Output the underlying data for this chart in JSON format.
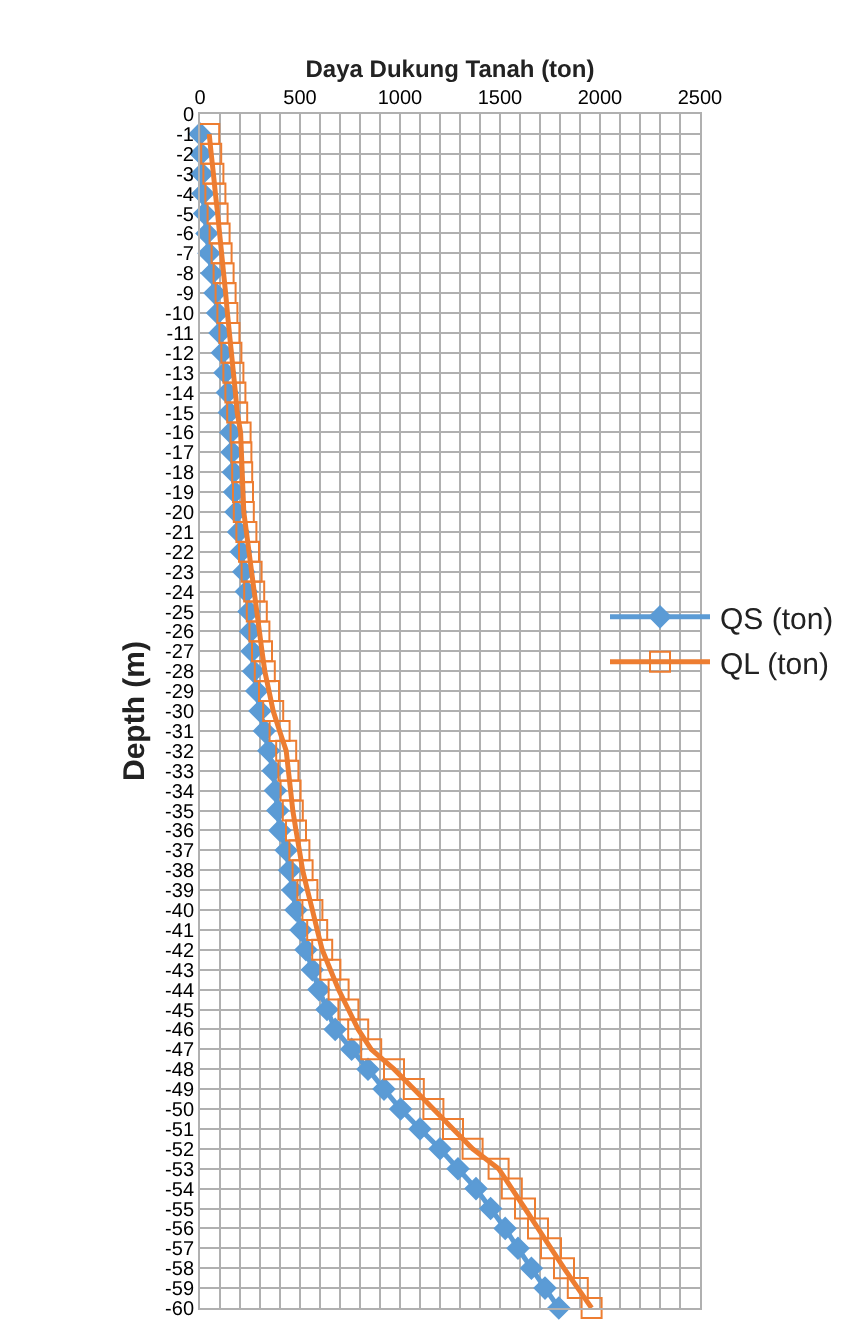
{
  "chart_data": {
    "type": "line",
    "xlabel": "Daya Dukung Tanah (ton)",
    "ylabel": "Depth (m)",
    "series": [
      {
        "name": "QS (ton)",
        "color": "#5b9bd5",
        "marker": "diamond",
        "x": [
          0,
          5,
          10,
          15,
          23,
          35,
          45,
          60,
          75,
          88,
          100,
          112,
          125,
          137,
          147,
          154,
          160,
          167,
          173,
          180,
          193,
          206,
          219,
          232,
          245,
          253,
          260,
          268,
          284,
          300,
          322,
          344,
          366,
          377,
          389,
          400,
          431,
          448,
          464,
          480,
          505,
          530,
          562,
          595,
          635,
          676,
          758,
          840,
          920,
          1003,
          1100,
          1200,
          1290,
          1380,
          1453,
          1526,
          1590,
          1657,
          1725,
          1794
        ],
        "values": [
          -1,
          -2,
          -3,
          -4,
          -5,
          -6,
          -7,
          -8,
          -9,
          -10,
          -11,
          -12,
          -13,
          -14,
          -15,
          -16,
          -17,
          -18,
          -19,
          -20,
          -21,
          -22,
          -23,
          -24,
          -25,
          -26,
          -27,
          -28,
          -29,
          -30,
          -31,
          -32,
          -33,
          -34,
          -35,
          -36,
          -37,
          -38,
          -39,
          -40,
          -41,
          -42,
          -43,
          -44,
          -45,
          -46,
          -47,
          -48,
          -49,
          -50,
          -51,
          -52,
          -53,
          -54,
          -55,
          -56,
          -57,
          -58,
          -59,
          -60
        ]
      },
      {
        "name": "QL (ton)",
        "color": "#ed7d31",
        "marker": "square",
        "x": [
          46,
          56,
          67,
          77,
          88,
          98,
          108,
          118,
          128,
          137,
          147,
          157,
          167,
          177,
          186,
          203,
          207,
          211,
          215,
          219,
          232,
          245,
          258,
          271,
          284,
          297,
          310,
          324,
          345,
          366,
          398,
          431,
          442,
          453,
          464,
          480,
          497,
          513,
          537,
          562,
          586,
          611,
          652,
          693,
          742,
          791,
          856,
          970,
          1069,
          1167,
          1265,
          1363,
          1493,
          1559,
          1625,
          1690,
          1755,
          1820,
          1889,
          1958
        ],
        "values": [
          -1,
          -2,
          -3,
          -4,
          -5,
          -6,
          -7,
          -8,
          -9,
          -10,
          -11,
          -12,
          -13,
          -14,
          -15,
          -16,
          -17,
          -18,
          -19,
          -20,
          -21,
          -22,
          -23,
          -24,
          -25,
          -26,
          -27,
          -28,
          -29,
          -30,
          -31,
          -32,
          -33,
          -34,
          -35,
          -36,
          -37,
          -38,
          -39,
          -40,
          -41,
          -42,
          -43,
          -44,
          -45,
          -46,
          -47,
          -48,
          -49,
          -50,
          -51,
          -52,
          -53,
          -54,
          -55,
          -56,
          -57,
          -58,
          -59,
          -60
        ]
      }
    ],
    "xlim": [
      0,
      2500
    ],
    "xticks": [
      0,
      {
        "value": 100,
        "label": null
      },
      {
        "value": 200,
        "label": null
      },
      {
        "value": 300,
        "label": null
      },
      {
        "value": 400,
        "label": null
      },
      500,
      {
        "value": 600,
        "label": null
      },
      {
        "value": 700,
        "label": null
      },
      {
        "value": 800,
        "label": null
      },
      {
        "value": 900,
        "label": null
      },
      1000,
      {
        "value": 1100,
        "label": null
      },
      {
        "value": 1200,
        "label": null
      },
      {
        "value": 1300,
        "label": null
      },
      {
        "value": 1400,
        "label": null
      },
      1500,
      {
        "value": 1600,
        "label": null
      },
      {
        "value": 1700,
        "label": null
      },
      {
        "value": 1800,
        "label": null
      },
      {
        "value": 1900,
        "label": null
      },
      2000,
      {
        "value": 2100,
        "label": null
      },
      {
        "value": 2200,
        "label": null
      },
      {
        "value": 2300,
        "label": null
      },
      {
        "value": 2400,
        "label": null
      },
      2500
    ],
    "ylim": [
      -60,
      0
    ],
    "yticks": [
      0,
      -1,
      -2,
      -3,
      -4,
      -5,
      -6,
      -7,
      -8,
      -9,
      -10,
      -11,
      -12,
      -13,
      -14,
      -15,
      -16,
      -17,
      -18,
      -19,
      -20,
      -21,
      -22,
      -23,
      -24,
      -25,
      -26,
      -27,
      -28,
      -29,
      -30,
      -31,
      -32,
      -33,
      -34,
      -35,
      -36,
      -37,
      -38,
      -39,
      -40,
      -41,
      -42,
      -43,
      -44,
      -45,
      -46,
      -47,
      -48,
      -49,
      -50,
      -51,
      -52,
      -53,
      -54,
      -55,
      -56,
      -57,
      -58,
      -59,
      -60
    ],
    "grid": true,
    "legend": "right"
  }
}
